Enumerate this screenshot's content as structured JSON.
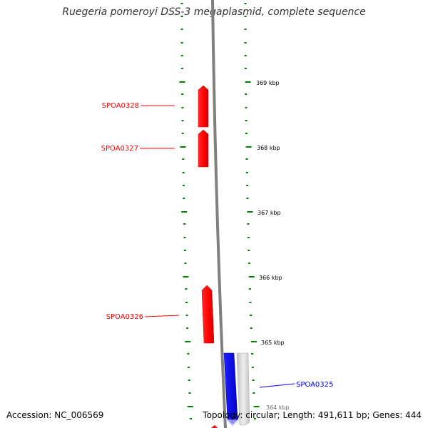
{
  "title": "Ruegeria pomeroyi DSS-3 megaplasmid, complete sequence",
  "accession": "Accession: NC_006569",
  "summary": "Topology: circular; Length: 491,611 bp; Genes: 444",
  "tick_labels": [
    "369 kbp",
    "368 kbp",
    "367 kbp",
    "366 kbp",
    "365 kbp",
    "364 kbp"
  ],
  "genes": [
    {
      "label": "SPOA0328",
      "strand": "forward",
      "color": "#ff0000"
    },
    {
      "label": "SPOA0327",
      "strand": "forward",
      "color": "#ff0000"
    },
    {
      "label": "SPOA0326",
      "strand": "forward",
      "color": "#ff0000"
    },
    {
      "label": "SPOA0325",
      "strand": "reverse",
      "color": "#0000ff"
    }
  ],
  "colors": {
    "forward_gene": "#ff0000",
    "reverse_gene": "#0000ff",
    "backbone": "#808080",
    "ticks": "#008000",
    "shadow_gene": "#cccccc"
  }
}
